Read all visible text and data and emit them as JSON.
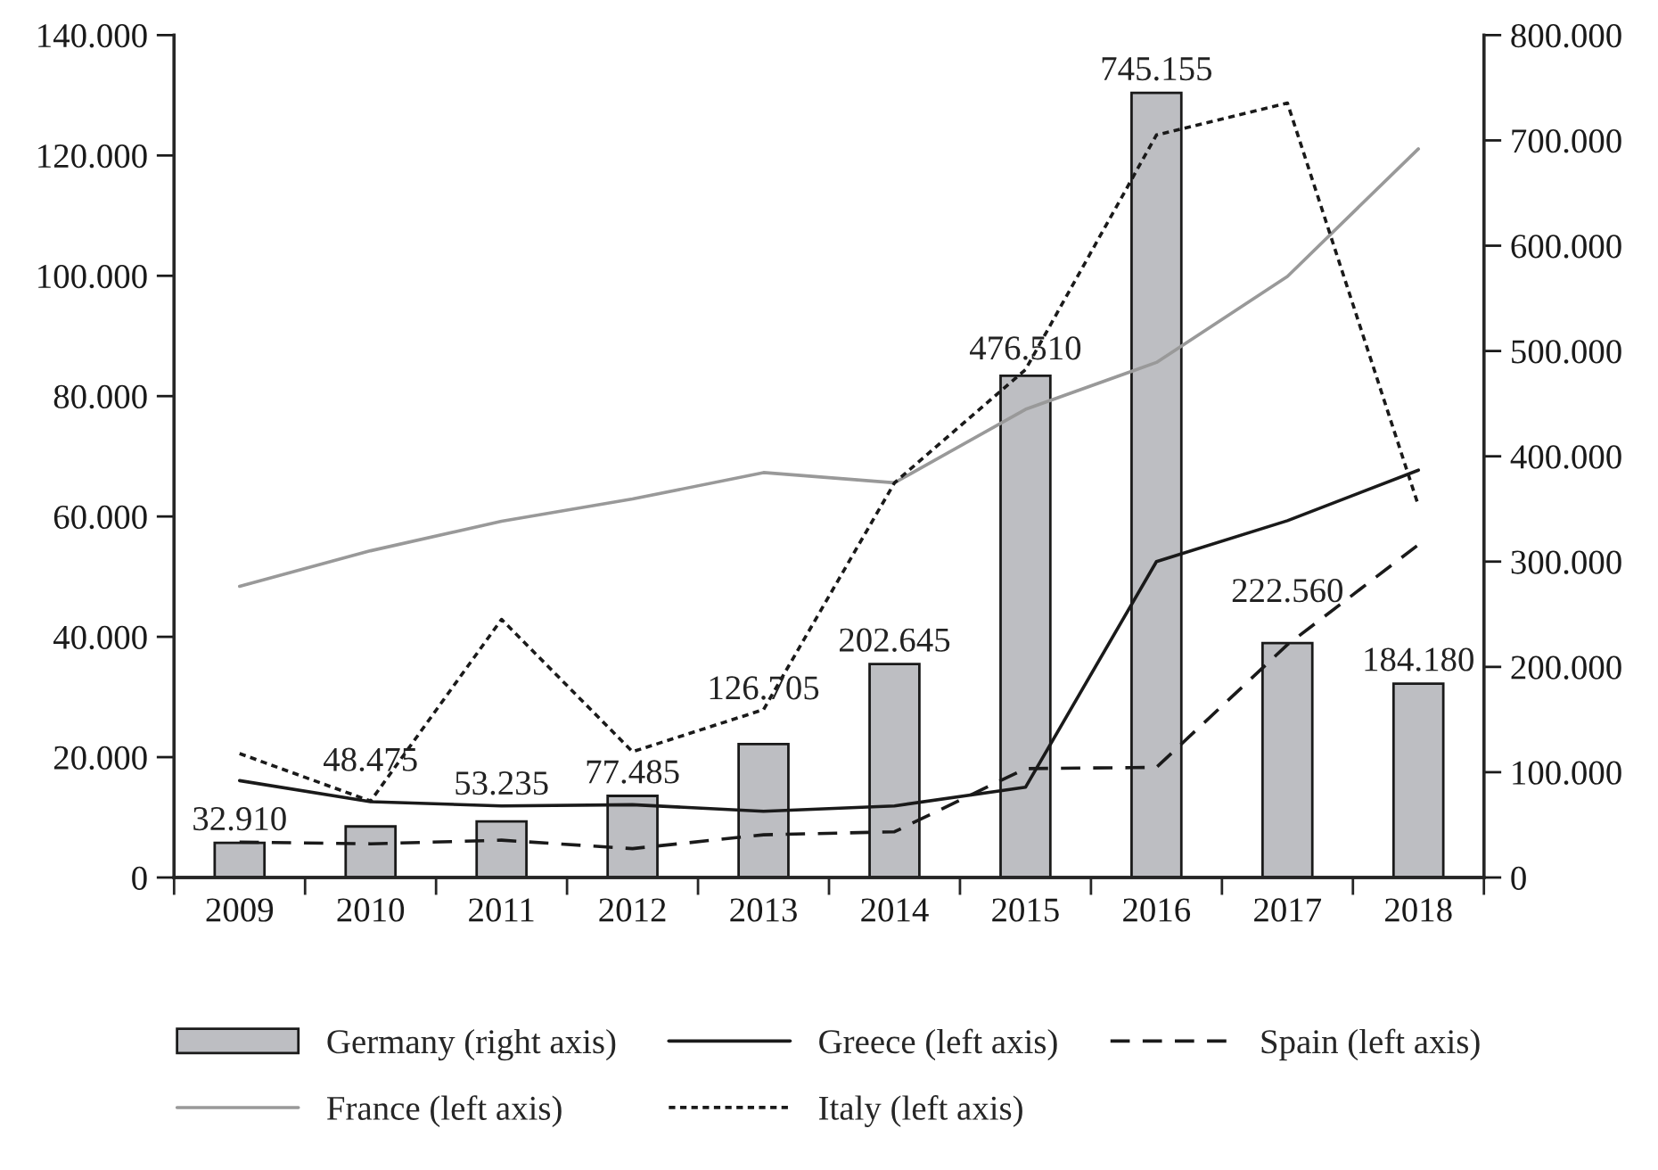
{
  "chart_data": {
    "type": "bar",
    "categories": [
      "2009",
      "2010",
      "2011",
      "2012",
      "2013",
      "2014",
      "2015",
      "2016",
      "2017",
      "2018"
    ],
    "series": [
      {
        "name": "Germany (right axis)",
        "type": "bar",
        "axis": "y2",
        "color": "#bdbec2",
        "values": [
          32910,
          48475,
          53235,
          77485,
          126705,
          202645,
          476510,
          745155,
          222560,
          184180
        ],
        "value_labels": [
          "32.910",
          "48.475",
          "53.235",
          "77.485",
          "126.705",
          "202.645",
          "476.510",
          "745.155",
          "222.560",
          "184.180"
        ]
      },
      {
        "name": "Greece (left axis)",
        "type": "line",
        "color": "#1a1a1a",
        "line_style": "solid",
        "values": [
          16100,
          12600,
          11900,
          12100,
          11000,
          11900,
          15000,
          52500,
          59300,
          67700
        ]
      },
      {
        "name": "Spain (left axis)",
        "type": "line",
        "color": "#1a1a1a",
        "line_style": "dashed",
        "values": [
          5900,
          5600,
          6200,
          4800,
          7100,
          7600,
          18100,
          18300,
          38700,
          55300
        ]
      },
      {
        "name": "France (left axis)",
        "type": "line",
        "color": "#999999",
        "line_style": "solid",
        "values": [
          48400,
          54300,
          59200,
          62900,
          67300,
          65600,
          77800,
          85600,
          99900,
          121100
        ]
      },
      {
        "name": "Italy (left axis)",
        "type": "line",
        "color": "#1a1a1a",
        "line_style": "dotted",
        "values": [
          20600,
          12700,
          42900,
          20900,
          27900,
          65600,
          84400,
          123400,
          128700,
          61800
        ]
      }
    ],
    "ylim": [
      0,
      140000
    ],
    "yticks": [
      {
        "value": 0,
        "label": "0"
      },
      {
        "value": 20000,
        "label": "20.000"
      },
      {
        "value": 40000,
        "label": "40.000"
      },
      {
        "value": 60000,
        "label": "60.000"
      },
      {
        "value": 80000,
        "label": "80.000"
      },
      {
        "value": 100000,
        "label": "100.000"
      },
      {
        "value": 120000,
        "label": "120.000"
      },
      {
        "value": 140000,
        "label": "140.000"
      }
    ],
    "y2lim": [
      0,
      800000
    ],
    "y2ticks": [
      {
        "value": 0,
        "label": "0"
      },
      {
        "value": 100000,
        "label": "100.000"
      },
      {
        "value": 200000,
        "label": "200.000"
      },
      {
        "value": 300000,
        "label": "300.000"
      },
      {
        "value": 400000,
        "label": "400.000"
      },
      {
        "value": 500000,
        "label": "500.000"
      },
      {
        "value": 600000,
        "label": "600.000"
      },
      {
        "value": 700000,
        "label": "700.000"
      },
      {
        "value": 800000,
        "label": "800.000"
      }
    ],
    "grid": false,
    "legend": "bottom"
  }
}
